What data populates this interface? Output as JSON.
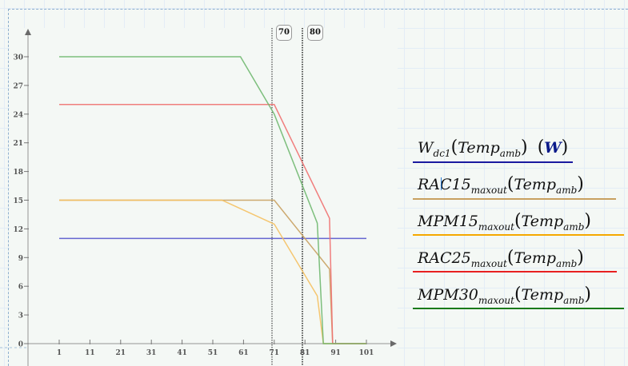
{
  "chart_data": {
    "type": "line",
    "title": "",
    "xlabel": "",
    "ylabel": "",
    "xlim": [
      1,
      101
    ],
    "ylim": [
      0,
      30
    ],
    "x_ticks": [
      "1",
      "11",
      "21",
      "31",
      "41",
      "51",
      "61",
      "71",
      "81",
      "91",
      "101"
    ],
    "y_ticks": [
      "0",
      "3",
      "6",
      "9",
      "12",
      "15",
      "18",
      "21",
      "24",
      "27",
      "30"
    ],
    "grid": false,
    "legend_position": "right",
    "vertical_markers": [
      {
        "x": 70,
        "label": "70",
        "style": "dotted"
      },
      {
        "x": 80,
        "label": "80",
        "style": "dotted"
      }
    ],
    "series": [
      {
        "name": "W_dc1(Temp_amb) (W)",
        "color": "#5555cc",
        "x": [
          1,
          101
        ],
        "values": [
          11,
          11
        ]
      },
      {
        "name": "RAC15_maxout(Temp_amb)",
        "color": "#c8a060",
        "x": [
          1,
          71,
          89,
          90,
          101
        ],
        "values": [
          15,
          15,
          7.8,
          0,
          0
        ]
      },
      {
        "name": "MPM15_maxout(Temp_amb)",
        "color": "#f5c060",
        "x": [
          1,
          54,
          71,
          85,
          87,
          101
        ],
        "values": [
          15,
          15,
          12.5,
          5,
          0,
          0
        ]
      },
      {
        "name": "RAC25_maxout(Temp_amb)",
        "color": "#f07070",
        "x": [
          1,
          71,
          89,
          90,
          101
        ],
        "values": [
          25,
          25,
          13.1,
          0,
          0
        ]
      },
      {
        "name": "MPM30_maxout(Temp_amb)",
        "color": "#70b870",
        "x": [
          1,
          60,
          71,
          85,
          87,
          101
        ],
        "values": [
          30,
          30,
          24,
          12.6,
          0,
          0
        ]
      }
    ]
  },
  "markers": {
    "m70": "70",
    "m80": "80"
  },
  "legend": [
    {
      "base": "W",
      "sub": "dc1",
      "arg": "Temp",
      "argsub": "amb",
      "unit": "W",
      "line_color": "#1a1aa0"
    },
    {
      "base": "RAC15",
      "sub": "maxout",
      "arg": "Temp",
      "argsub": "amb",
      "line_color": "#c8a060"
    },
    {
      "base": "MPM15",
      "sub": "maxout",
      "arg": "Temp",
      "argsub": "amb",
      "line_color": "#f5a800"
    },
    {
      "base": "RAC25",
      "sub": "maxout",
      "arg": "Temp",
      "argsub": "amb",
      "line_color": "#e82020"
    },
    {
      "base": "MPM30",
      "sub": "maxout",
      "arg": "Temp",
      "argsub": "amb",
      "line_color": "#1a7a1a"
    }
  ]
}
